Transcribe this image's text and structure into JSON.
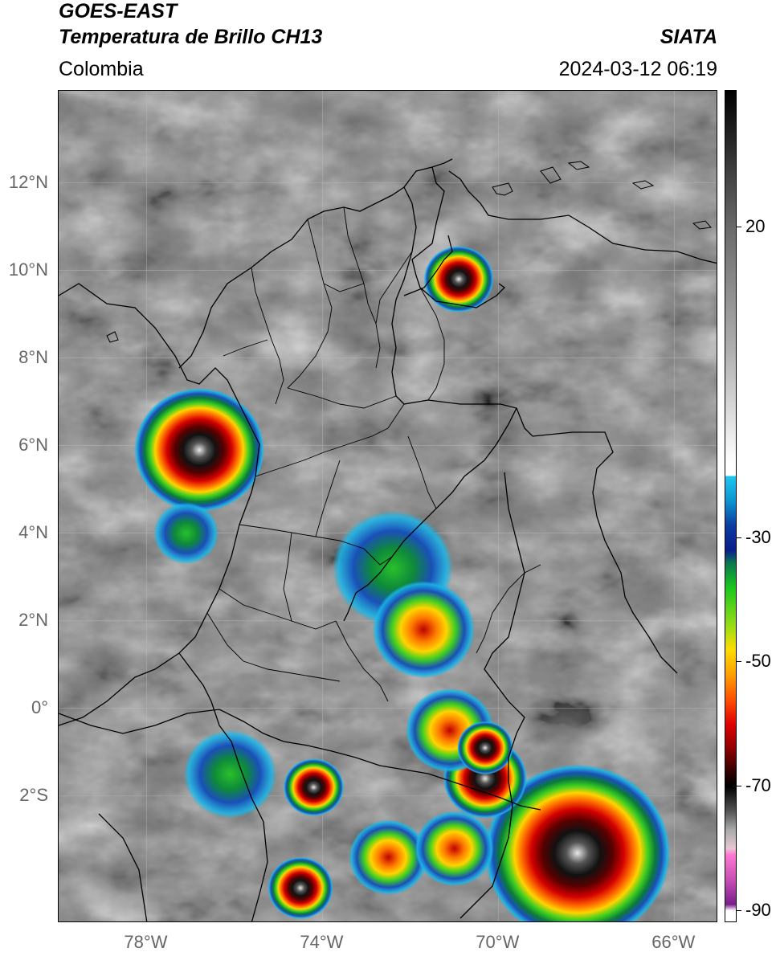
{
  "header": {
    "satellite": "GOES-EAST",
    "product": "Temperatura de Brillo CH13",
    "brand": "SIATA",
    "region": "Colombia",
    "timestamp": "2024-03-12 06:19"
  },
  "map": {
    "lat_range": [
      -4.9,
      14.1
    ],
    "lon_range": [
      -80,
      -65
    ],
    "lat_labels": [
      {
        "lat": 12,
        "label": "12°N"
      },
      {
        "lat": 10,
        "label": "10°N"
      },
      {
        "lat": 8,
        "label": "8°N"
      },
      {
        "lat": 6,
        "label": "6°N"
      },
      {
        "lat": 4,
        "label": "4°N"
      },
      {
        "lat": 2,
        "label": "2°N"
      },
      {
        "lat": 0,
        "label": "0°"
      },
      {
        "lat": -2,
        "label": "2°S"
      }
    ],
    "lon_labels": [
      {
        "lon": -78,
        "label": "78°W"
      },
      {
        "lon": -74,
        "label": "74°W"
      },
      {
        "lon": -70,
        "label": "70°W"
      },
      {
        "lon": -66,
        "label": "66°W"
      }
    ],
    "storms": [
      {
        "lat": 5.9,
        "lon": -76.8,
        "min_temp": -85,
        "size": 1.0
      },
      {
        "lat": 9.8,
        "lon": -70.9,
        "min_temp": -70,
        "size": 0.35
      },
      {
        "lat": -3.3,
        "lon": -68.2,
        "min_temp": -88,
        "size": 1.6
      },
      {
        "lat": -1.6,
        "lon": -70.3,
        "min_temp": -72,
        "size": 0.5
      },
      {
        "lat": -0.5,
        "lon": -71.1,
        "min_temp": -62,
        "size": 0.55
      },
      {
        "lat": -1.8,
        "lon": -74.2,
        "min_temp": -65,
        "size": 0.25
      },
      {
        "lat": -3.4,
        "lon": -72.5,
        "min_temp": -60,
        "size": 0.45
      },
      {
        "lat": -4.1,
        "lon": -74.5,
        "min_temp": -68,
        "size": 0.3
      },
      {
        "lat": 3.2,
        "lon": -72.4,
        "min_temp": -42,
        "size": 0.9
      },
      {
        "lat": 1.8,
        "lon": -71.7,
        "min_temp": -50,
        "size": 0.7
      },
      {
        "lat": -0.9,
        "lon": -70.3,
        "min_temp": -70,
        "size": 0.2
      },
      {
        "lat": 4.0,
        "lon": -77.1,
        "min_temp": -40,
        "size": 0.3
      },
      {
        "lat": -1.5,
        "lon": -76.1,
        "min_temp": -35,
        "size": 0.6
      },
      {
        "lat": -3.2,
        "lon": -71.0,
        "min_temp": -55,
        "size": 0.45
      }
    ]
  },
  "colorbar": {
    "range": [
      -92,
      42
    ],
    "ticks": [
      {
        "value": 20,
        "label": "20"
      },
      {
        "value": -30,
        "label": "-30"
      },
      {
        "value": -50,
        "label": "-50"
      },
      {
        "value": -70,
        "label": "-70"
      },
      {
        "value": -90,
        "label": "-90"
      }
    ]
  }
}
